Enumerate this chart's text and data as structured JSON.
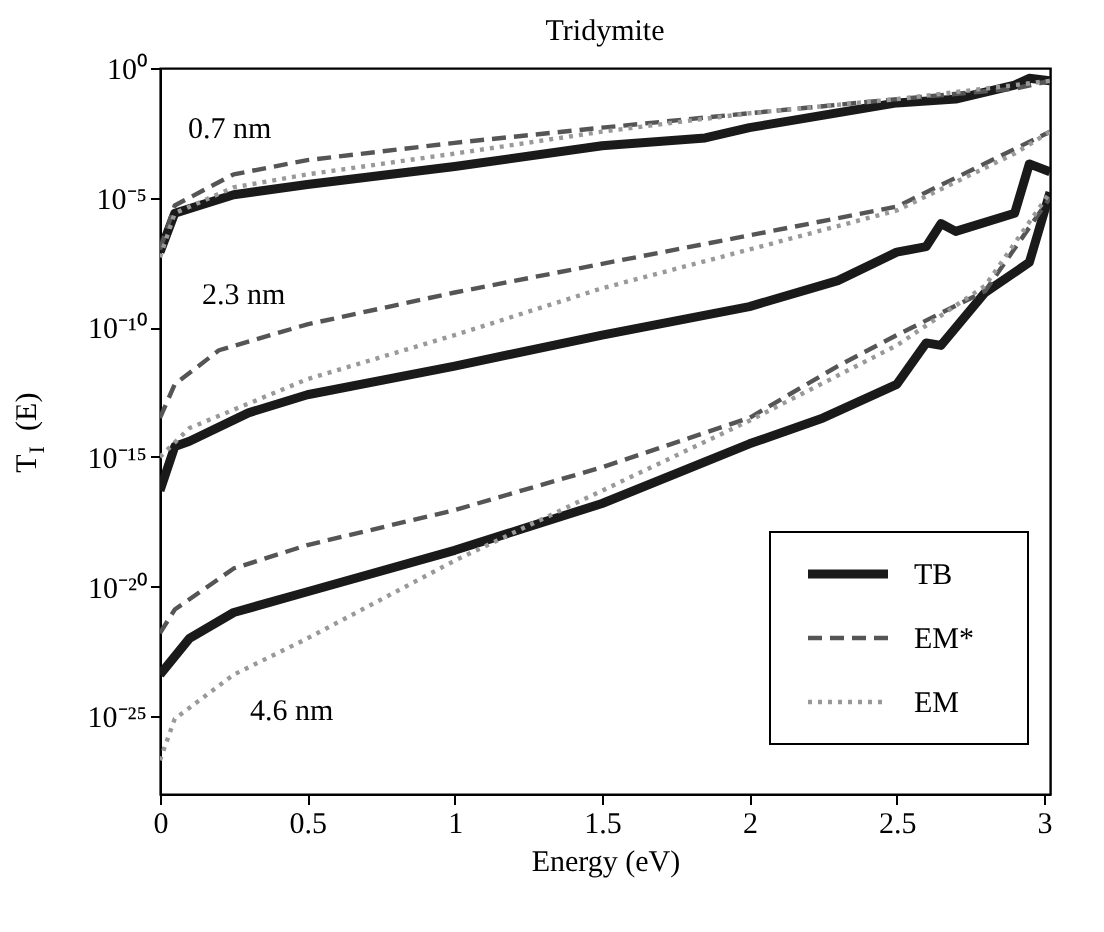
{
  "chart_data": {
    "type": "line",
    "title": "Tridymite",
    "xlabel": "Energy (eV)",
    "ylabel": "T$_{I}$ (E)",
    "xlim": [
      0,
      3.02
    ],
    "xticks": [
      0,
      0.5,
      1,
      1.5,
      2,
      2.5,
      3
    ],
    "ylim": [
      1e-28,
      1
    ],
    "log": "y",
    "yticks": [
      {
        "value": 1,
        "label": "10⁰"
      },
      {
        "value": 1e-05,
        "label": "10⁻⁵"
      },
      {
        "value": 1e-10,
        "label": "10⁻¹⁰"
      },
      {
        "value": 1e-15,
        "label": "10⁻¹⁵"
      },
      {
        "value": 1e-20,
        "label": "10⁻²⁰"
      },
      {
        "value": 1e-25,
        "label": "10⁻²⁵"
      }
    ],
    "grid": false,
    "legend": "bottom right",
    "series": [
      {
        "name": "TB",
        "color": "#1a1a1a",
        "line_style": "solid",
        "x": [
          0,
          0.05,
          0.25,
          0.5,
          1,
          1.5,
          1.85,
          2,
          2.5,
          2.7,
          2.9,
          2.95,
          3.02
        ],
        "values": [
          7.9e-08,
          2.5e-06,
          1.3e-05,
          3.2e-05,
          0.00016,
          0.001,
          0.002,
          0.005,
          0.045,
          0.063,
          0.22,
          0.4,
          0.32
        ]
      },
      {
        "name": "EM*",
        "color": "#555555",
        "line_style": "dashed",
        "x": [
          0,
          0.05,
          0.25,
          0.5,
          1,
          1.5,
          2,
          2.5,
          2.9,
          3.02
        ],
        "values": [
          1e-07,
          5e-06,
          7.9e-05,
          0.00028,
          0.0013,
          0.005,
          0.018,
          0.063,
          0.16,
          0.32
        ]
      },
      {
        "name": "EM",
        "color": "#999999",
        "line_style": "dotted",
        "x": [
          0,
          0.05,
          0.25,
          0.5,
          1,
          1.5,
          2,
          2.5,
          3.02
        ],
        "values": [
          5e-08,
          2.5e-06,
          2.5e-05,
          7.9e-05,
          0.0005,
          0.0035,
          0.018,
          0.063,
          0.32
        ]
      },
      {
        "color": "#1a1a1a",
        "line_style": "solid",
        "x": [
          0,
          0.05,
          0.1,
          0.3,
          0.5,
          1,
          1.5,
          2,
          2.3,
          2.5,
          2.6,
          2.65,
          2.7,
          2.9,
          2.95,
          3.02
        ],
        "values": [
          5e-17,
          2.5e-15,
          4e-15,
          5e-14,
          2.5e-13,
          3.2e-12,
          5e-11,
          6.3e-10,
          6.3e-09,
          7.9e-08,
          1.3e-07,
          1e-06,
          5e-07,
          2.5e-06,
          0.0002,
          0.0001
        ]
      },
      {
        "color": "#555555",
        "line_style": "dashed",
        "x": [
          0,
          0.05,
          0.2,
          0.5,
          1,
          1.5,
          2,
          2.5,
          3.02
        ],
        "values": [
          3.2e-14,
          6.3e-13,
          1.3e-11,
          1.3e-10,
          2.2e-09,
          2.8e-08,
          3.5e-07,
          4.5e-06,
          0.0035
        ]
      },
      {
        "color": "#999999",
        "line_style": "dotted",
        "x": [
          0,
          0.1,
          0.5,
          1,
          1.5,
          2,
          2.5,
          2.9,
          3.02
        ],
        "values": [
          1e-15,
          1.3e-14,
          1e-12,
          5e-11,
          3.2e-09,
          1e-07,
          3.2e-06,
          0.0005,
          0.0035
        ]
      },
      {
        "color": "#1a1a1a",
        "line_style": "solid",
        "x": [
          0,
          0.1,
          0.25,
          0.5,
          1,
          1.5,
          2,
          2.25,
          2.5,
          2.6,
          2.65,
          2.8,
          2.95,
          3.02
        ],
        "values": [
          4e-24,
          1e-22,
          1e-21,
          6.3e-21,
          2.5e-19,
          1.6e-17,
          3.2e-15,
          3.2e-14,
          6.3e-13,
          2.5e-11,
          2e-11,
          2.2e-09,
          3.2e-08,
          1.6e-05
        ]
      },
      {
        "color": "#555555",
        "line_style": "dashed",
        "x": [
          0,
          0.05,
          0.25,
          0.5,
          1,
          1.5,
          2,
          2.3,
          2.5,
          2.8,
          3.02
        ],
        "values": [
          1.6e-22,
          1.3e-21,
          5e-20,
          4e-19,
          8.9e-18,
          4e-16,
          3.2e-14,
          3.2e-12,
          5e-11,
          2.5e-09,
          1e-05
        ]
      },
      {
        "color": "#999999",
        "line_style": "dotted",
        "x": [
          0,
          0.05,
          0.25,
          0.5,
          1,
          1.5,
          2,
          2.5,
          2.8,
          3.02
        ],
        "values": [
          2e-27,
          7.9e-26,
          4e-24,
          1e-22,
          1e-19,
          5e-17,
          2.5e-14,
          2e-11,
          4e-09,
          1.6e-05
        ]
      }
    ],
    "annotations": [
      "0.7 nm",
      "2.3 nm",
      "4.6 nm"
    ]
  }
}
